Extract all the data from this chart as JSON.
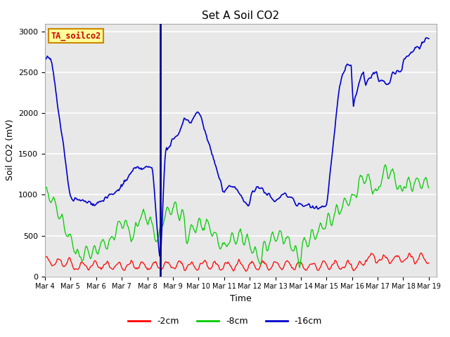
{
  "title": "Set A Soil CO2",
  "ylabel": "Soil CO2 (mV)",
  "xlabel": "Time",
  "ylim": [
    0,
    3100
  ],
  "yticks": [
    0,
    500,
    1000,
    1500,
    2000,
    2500,
    3000
  ],
  "bg_color": "#e8e8e8",
  "fig_color": "#ffffff",
  "line_colors": {
    "red": "#ff0000",
    "green": "#00cc00",
    "blue": "#0000cc"
  },
  "legend_labels": [
    "-2cm",
    "-8cm",
    "-16cm"
  ],
  "box_label": "TA_soilco2",
  "box_bg": "#ffff99",
  "box_border": "#cc8800",
  "vline_day": 8.5,
  "n_points": 500
}
